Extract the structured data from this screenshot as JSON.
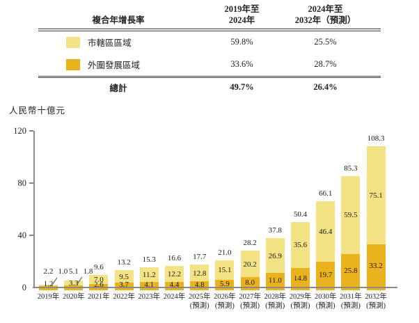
{
  "table": {
    "header_label": "複合年增長率",
    "col1": {
      "line1": "2019年至",
      "line2": "2024年"
    },
    "col2": {
      "line1": "2024年至",
      "line2": "2032年（預測）"
    },
    "rows": [
      {
        "label": "市轄區區域",
        "col1": "59.8%",
        "col2": "25.5%"
      },
      {
        "label": "外圍發展區域",
        "col1": "33.6%",
        "col2": "28.7%"
      }
    ],
    "total": {
      "label": "總計",
      "col1": "49.7%",
      "col2": "26.4%"
    }
  },
  "unit_label": "人民幣十億元",
  "colors": {
    "urban_light_yellow": "#f3e384",
    "outer_gold": "#eab31e",
    "axis_gray": "#8a8a8a",
    "text": "#262220"
  },
  "chart_data": {
    "type": "bar",
    "stacked": true,
    "ylabel": "人民幣十億元",
    "ylim": [
      0,
      120
    ],
    "yticks": [
      0,
      40,
      80,
      120
    ],
    "grid": false,
    "legend_position": "in-table-above",
    "categories": [
      {
        "label": "2019年",
        "sublabel": ""
      },
      {
        "label": "2020年",
        "sublabel": ""
      },
      {
        "label": "2021年",
        "sublabel": ""
      },
      {
        "label": "2022年",
        "sublabel": ""
      },
      {
        "label": "2023年",
        "sublabel": ""
      },
      {
        "label": "2024年",
        "sublabel": ""
      },
      {
        "label": "2025年",
        "sublabel": "(預測)"
      },
      {
        "label": "2026年",
        "sublabel": "(預測)"
      },
      {
        "label": "2027年",
        "sublabel": "(預測)"
      },
      {
        "label": "2028年",
        "sublabel": "(預測)"
      },
      {
        "label": "2029年",
        "sublabel": "(預測)"
      },
      {
        "label": "2030年",
        "sublabel": "(預測)"
      },
      {
        "label": "2031年",
        "sublabel": "(預測)"
      },
      {
        "label": "2032年",
        "sublabel": "(預測)"
      }
    ],
    "series": [
      {
        "name": "外圍發展區域",
        "color": "#eab31e",
        "values": [
          1.0,
          1.8,
          2.6,
          3.7,
          4.1,
          4.4,
          4.8,
          5.9,
          8.0,
          11.0,
          14.8,
          19.7,
          25.8,
          33.2
        ]
      },
      {
        "name": "市轄區區域",
        "color": "#f3e384",
        "values": [
          1.2,
          3.3,
          7.0,
          9.5,
          11.2,
          12.2,
          12.8,
          15.1,
          20.2,
          26.9,
          35.6,
          46.4,
          59.5,
          75.1
        ]
      }
    ],
    "totals": [
      2.2,
      5.1,
      9.6,
      13.2,
      15.3,
      16.6,
      17.7,
      21.0,
      28.2,
      37.8,
      50.4,
      66.1,
      85.3,
      108.3
    ]
  }
}
